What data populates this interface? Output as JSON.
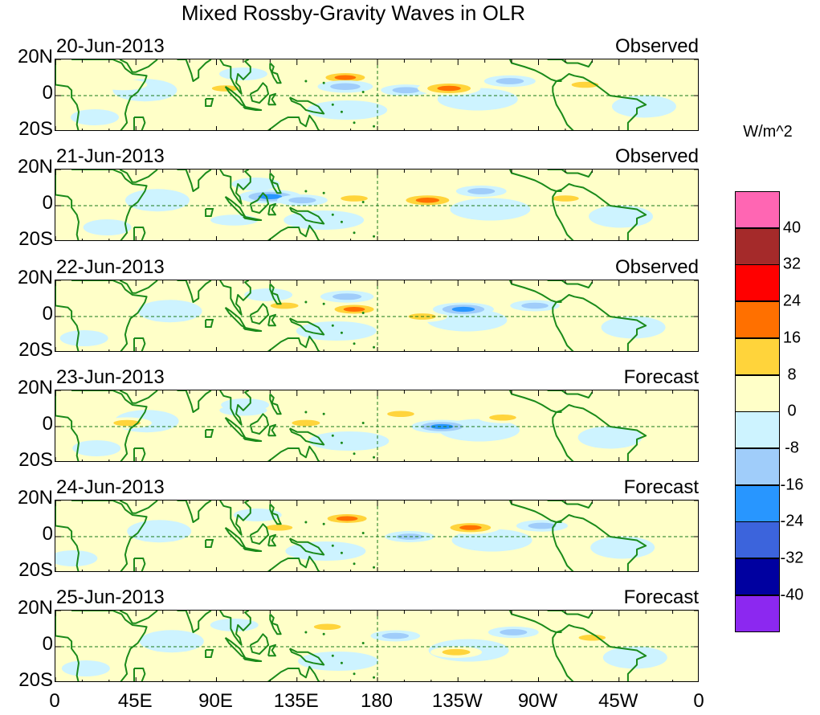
{
  "title": "Mixed Rossby-Gravity Waves in OLR",
  "panels": [
    {
      "date": "20-Jun-2013",
      "status": "Observed"
    },
    {
      "date": "21-Jun-2013",
      "status": "Observed"
    },
    {
      "date": "22-Jun-2013",
      "status": "Observed"
    },
    {
      "date": "23-Jun-2013",
      "status": "Forecast"
    },
    {
      "date": "24-Jun-2013",
      "status": "Forecast"
    },
    {
      "date": "25-Jun-2013",
      "status": "Forecast"
    }
  ],
  "y_ticks": [
    "20N",
    "0",
    "20S"
  ],
  "x_ticks": [
    "0",
    "45E",
    "90E",
    "135E",
    "180",
    "135W",
    "90W",
    "45W",
    "0"
  ],
  "colorbar": {
    "units": "W/m^2",
    "labels": [
      "40",
      "32",
      "24",
      "16",
      "8",
      "0",
      "-8",
      "-16",
      "-24",
      "-32",
      "-40"
    ],
    "colors": [
      "#ff66b3",
      "#a52a2a",
      "#ff0000",
      "#ff7000",
      "#ffd43b",
      "#ffffc8",
      "#cdf3ff",
      "#a0cdfa",
      "#2896ff",
      "#3c64dc",
      "#0000a0",
      "#8c28f0"
    ]
  },
  "chart_data": {
    "type": "heatmap",
    "title": "Mixed Rossby-Gravity Waves in OLR",
    "units": "W/m^2",
    "x_range": [
      "0",
      "360 (0)"
    ],
    "y_range": [
      "20S",
      "20N"
    ],
    "levels": [
      -40,
      -32,
      -24,
      -16,
      -8,
      0,
      8,
      16,
      24,
      32,
      40
    ],
    "anomalies": [
      [
        {
          "lon": 38,
          "lat": 6,
          "value": 6
        },
        {
          "lon": 95,
          "lat": 4,
          "value": 8
        },
        {
          "lon": 113,
          "lat": 0,
          "value": 6
        },
        {
          "lon": 162,
          "lat": 10,
          "value": 16
        },
        {
          "lon": 162,
          "lat": 5,
          "value": -14
        },
        {
          "lon": 196,
          "lat": 3,
          "value": -9
        },
        {
          "lon": 220,
          "lat": 4,
          "value": 22
        },
        {
          "lon": 254,
          "lat": 8,
          "value": -10
        },
        {
          "lon": 296,
          "lat": 6,
          "value": 8
        }
      ],
      [
        {
          "lon": 120,
          "lat": 5,
          "value": -22
        },
        {
          "lon": 138,
          "lat": 3,
          "value": -9
        },
        {
          "lon": 167,
          "lat": 4,
          "value": 8
        },
        {
          "lon": 208,
          "lat": 3,
          "value": 22
        },
        {
          "lon": 238,
          "lat": 8,
          "value": -9
        },
        {
          "lon": 100,
          "lat": -8,
          "value": -6
        },
        {
          "lon": 285,
          "lat": 4,
          "value": 8
        }
      ],
      [
        {
          "lon": 58,
          "lat": 12,
          "value": 6
        },
        {
          "lon": 128,
          "lat": 6,
          "value": 10
        },
        {
          "lon": 163,
          "lat": 11,
          "value": -12
        },
        {
          "lon": 167,
          "lat": 4,
          "value": 16
        },
        {
          "lon": 205,
          "lat": 0,
          "value": 9
        },
        {
          "lon": 228,
          "lat": 4,
          "value": -20
        },
        {
          "lon": 268,
          "lat": 6,
          "value": -8
        }
      ],
      [
        {
          "lon": 40,
          "lat": 2,
          "value": 8
        },
        {
          "lon": 140,
          "lat": 2,
          "value": 10
        },
        {
          "lon": 193,
          "lat": 7,
          "value": 8
        },
        {
          "lon": 216,
          "lat": 0,
          "value": -20
        },
        {
          "lon": 250,
          "lat": 5,
          "value": 8
        },
        {
          "lon": 105,
          "lat": 9,
          "value": -6
        }
      ],
      [
        {
          "lon": 163,
          "lat": 10,
          "value": 16
        },
        {
          "lon": 198,
          "lat": 0,
          "value": -8
        },
        {
          "lon": 232,
          "lat": 5,
          "value": 18
        },
        {
          "lon": 272,
          "lat": 6,
          "value": -10
        },
        {
          "lon": 125,
          "lat": 5,
          "value": 8
        }
      ],
      [
        {
          "lon": 12,
          "lat": 10,
          "value": 7
        },
        {
          "lon": 152,
          "lat": 11,
          "value": 8
        },
        {
          "lon": 190,
          "lat": 6,
          "value": -8
        },
        {
          "lon": 224,
          "lat": -3,
          "value": 10
        },
        {
          "lon": 256,
          "lat": 8,
          "value": -9
        },
        {
          "lon": 300,
          "lat": 5,
          "value": 8
        }
      ]
    ]
  }
}
